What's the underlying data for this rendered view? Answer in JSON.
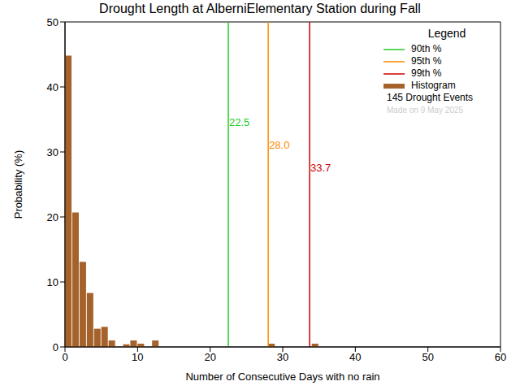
{
  "chart_data": {
    "type": "histogram",
    "title": "Drought Length at AlberniElementary Station during Fall",
    "x_label": "Number of Consecutive Days with no rain",
    "y_label": "Probability (%)",
    "bins": [
      0,
      1,
      2,
      3,
      4,
      5,
      6,
      7,
      8,
      9,
      10,
      11,
      12,
      13,
      14,
      15,
      16,
      17,
      18,
      19,
      20,
      21,
      22,
      23,
      24,
      25,
      26,
      27,
      28,
      29,
      30,
      31,
      32,
      33,
      34,
      35,
      36,
      37,
      38,
      39,
      40,
      41,
      42,
      43,
      44,
      45,
      46,
      47,
      48,
      49,
      50,
      51,
      52,
      53,
      54,
      55,
      56,
      57,
      58,
      59,
      60
    ],
    "values": [
      44.8,
      20.7,
      13.1,
      8.3,
      2.8,
      3.1,
      1.0,
      0,
      0.4,
      1.0,
      0.5,
      0,
      1.0,
      0,
      0,
      0,
      0,
      0,
      0,
      0,
      0,
      0,
      0,
      0,
      0,
      0,
      0,
      0,
      0.5,
      0,
      0,
      0,
      0,
      0,
      0.5,
      0,
      0,
      0,
      0,
      0,
      0,
      0,
      0,
      0,
      0,
      0,
      0,
      0,
      0,
      0,
      0,
      0,
      0,
      0,
      0,
      0,
      0,
      0,
      0,
      0
    ],
    "color": "#a5632b",
    "xlim": [
      0,
      60
    ],
    "ylim": [
      0,
      50
    ],
    "xticks": [
      0,
      10,
      20,
      30,
      40,
      50,
      60
    ],
    "yticks": [
      0,
      10,
      20,
      30,
      40,
      50
    ],
    "legend": "upper right",
    "legend_title": "Legend",
    "histogram_name": "Histogram",
    "annotations": [
      {
        "name": "90th %",
        "x": 22.5,
        "label": "22.5",
        "color": "#22cc22"
      },
      {
        "name": "95th %",
        "x": 28.0,
        "label": "28.0",
        "color": "#ff8800"
      },
      {
        "name": "99th %",
        "x": 33.7,
        "label": "33.7",
        "color": "#cc0000"
      }
    ],
    "notes": [
      "145 Drought Events",
      "Made on 9 May 2025"
    ]
  }
}
